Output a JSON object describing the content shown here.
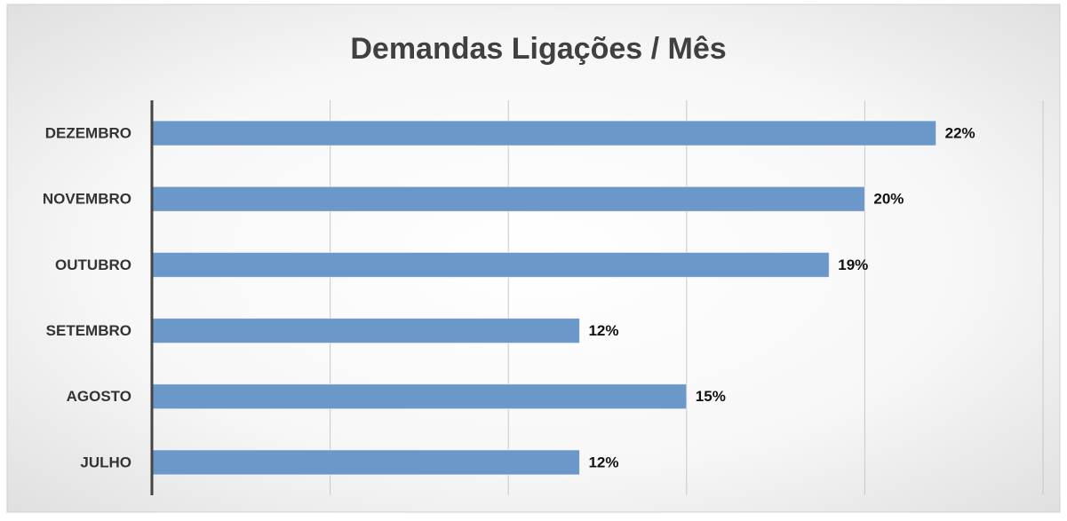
{
  "chart_data": {
    "type": "hbar",
    "title": "Demandas  Ligações / Mês",
    "categories": [
      "DEZEMBRO",
      "NOVEMBRO",
      "OUTUBRO",
      "SETEMBRO",
      "AGOSTO",
      "JULHO"
    ],
    "values": [
      22,
      20,
      19,
      12,
      15,
      12
    ],
    "value_labels": [
      "22%",
      "20%",
      "19%",
      "12%",
      "15%",
      "12%"
    ],
    "color": "#6b97c9",
    "xlim": [
      0,
      25
    ],
    "xticks": [
      0,
      5,
      10,
      15,
      20,
      25
    ],
    "grid": true
  }
}
